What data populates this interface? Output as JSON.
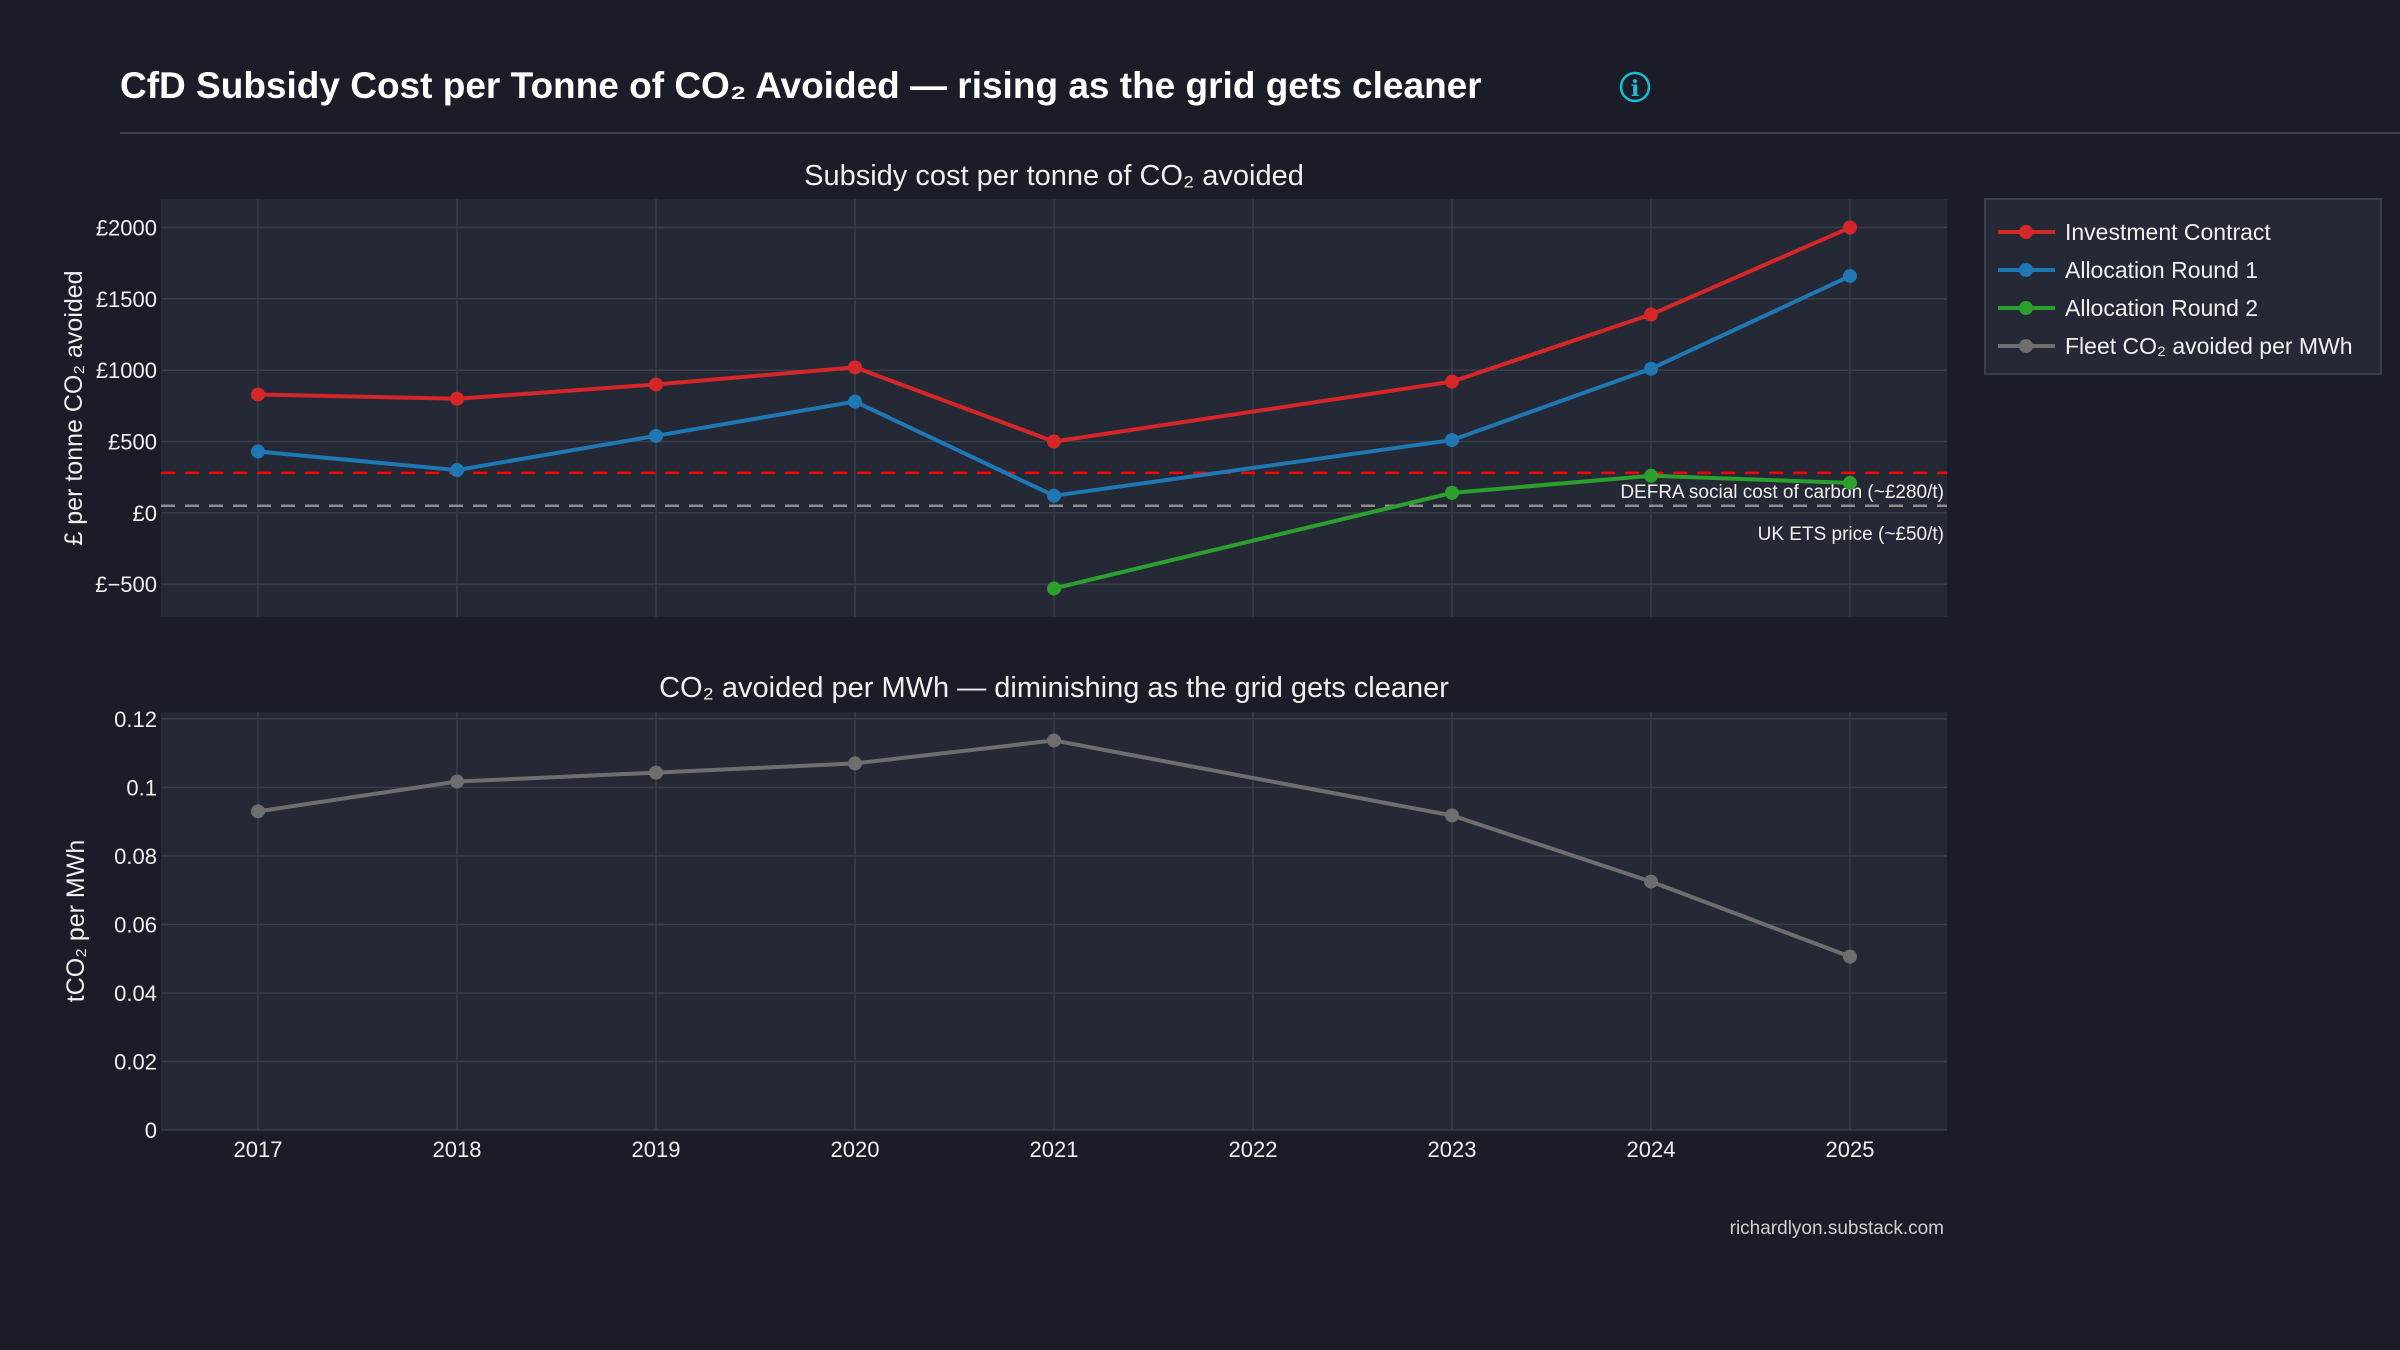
{
  "header": {
    "title": "CfD Subsidy Cost per Tonne of CO₂ Avoided — rising as the grid gets cleaner",
    "info_icon": "info-circle-icon"
  },
  "footer": {
    "credit": "richardlyon.substack.com"
  },
  "colors": {
    "background": "#1a1c28",
    "plot_bg": "#252835",
    "grid": "#3a3d4a",
    "investment": "#d62728",
    "ar1": "#1f77b4",
    "ar2": "#2ca02c",
    "fleet": "#6e6e6e",
    "info": "#17becf"
  },
  "chart_data": [
    {
      "type": "line",
      "title": "Subsidy cost per tonne of CO₂ avoided",
      "ylabel": "£ per tonne CO₂ avoided",
      "xlabel": "",
      "ylim": [
        -730,
        2200
      ],
      "yticks": [
        -500,
        0,
        500,
        1000,
        1500,
        2000
      ],
      "ytick_labels": [
        "£−500",
        "£0",
        "£500",
        "£1000",
        "£1500",
        "£2000"
      ],
      "x": [
        2017,
        2018,
        2019,
        2020,
        2021,
        2022,
        2023,
        2024,
        2025
      ],
      "grid": true,
      "legend_placement": "right",
      "series": [
        {
          "name": "Investment Contract",
          "color": "#d62728",
          "points": [
            [
              2017,
              830
            ],
            [
              2018,
              800
            ],
            [
              2019,
              900
            ],
            [
              2020,
              1020
            ],
            [
              2021,
              500
            ],
            [
              2023,
              920
            ],
            [
              2024,
              1390
            ],
            [
              2025,
              2000
            ]
          ]
        },
        {
          "name": "Allocation Round 1",
          "color": "#1f77b4",
          "points": [
            [
              2017,
              430
            ],
            [
              2018,
              300
            ],
            [
              2019,
              540
            ],
            [
              2020,
              780
            ],
            [
              2021,
              120
            ],
            [
              2023,
              510
            ],
            [
              2024,
              1010
            ],
            [
              2025,
              1660
            ]
          ]
        },
        {
          "name": "Allocation Round 2",
          "color": "#2ca02c",
          "points": [
            [
              2021,
              -530
            ],
            [
              2023,
              140
            ],
            [
              2024,
              260
            ],
            [
              2025,
              210
            ]
          ]
        }
      ],
      "reference_lines": [
        {
          "value": 280,
          "label": "DEFRA social cost of carbon (~£280/t)",
          "color": "#ff0000"
        },
        {
          "value": 50,
          "label": "UK ETS price (~£50/t)",
          "color": "#8c8c8c"
        }
      ]
    },
    {
      "type": "line",
      "title": "CO₂ avoided per MWh — diminishing as the grid gets cleaner",
      "ylabel": "tCO₂ per MWh",
      "xlabel": "",
      "ylim": [
        0,
        0.122
      ],
      "yticks": [
        0,
        0.02,
        0.04,
        0.06,
        0.08,
        0.1,
        0.12
      ],
      "ytick_labels": [
        "0",
        "0.02",
        "0.04",
        "0.06",
        "0.08",
        "0.1",
        "0.12"
      ],
      "x": [
        2017,
        2018,
        2019,
        2020,
        2021,
        2022,
        2023,
        2024,
        2025
      ],
      "xtick_labels": [
        "2017",
        "2018",
        "2019",
        "2020",
        "2021",
        "2022",
        "2023",
        "2024",
        "2025"
      ],
      "grid": true,
      "series": [
        {
          "name": "Fleet CO₂ avoided per MWh",
          "color": "#6e6e6e",
          "points": [
            [
              2017,
              0.093
            ],
            [
              2018,
              0.1017
            ],
            [
              2019,
              0.1043
            ],
            [
              2020,
              0.107
            ],
            [
              2021,
              0.1137
            ],
            [
              2023,
              0.0918
            ],
            [
              2024,
              0.0725
            ],
            [
              2025,
              0.0506
            ]
          ]
        }
      ]
    }
  ]
}
